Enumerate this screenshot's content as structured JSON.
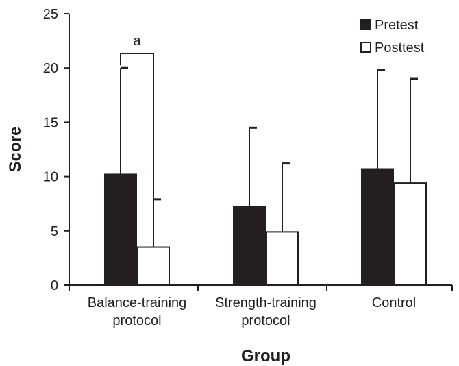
{
  "chart_data": {
    "type": "bar",
    "xlabel": "Group",
    "ylabel": "Score",
    "ylim": [
      0,
      25
    ],
    "yticks": [
      0,
      5,
      10,
      15,
      20,
      25
    ],
    "grid": false,
    "legend_position": "top-right",
    "categories": [
      [
        "Balance-training",
        "protocol"
      ],
      [
        "Strength-training",
        "protocol"
      ],
      [
        "Control"
      ]
    ],
    "series": [
      {
        "name": "Pretest",
        "color": "#231f20",
        "values": [
          10.2,
          7.2,
          10.7
        ],
        "error": [
          9.8,
          7.3,
          9.1
        ]
      },
      {
        "name": "Posttest",
        "color": "#ffffff",
        "values": [
          3.5,
          4.9,
          9.4
        ],
        "error": [
          4.4,
          6.3,
          9.6
        ]
      }
    ],
    "annotations": [
      {
        "text": "a",
        "category_index": 0
      }
    ]
  }
}
